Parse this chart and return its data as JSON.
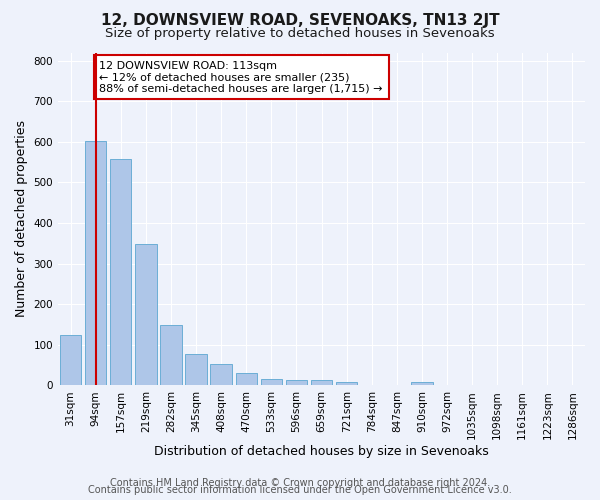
{
  "title": "12, DOWNSVIEW ROAD, SEVENOAKS, TN13 2JT",
  "subtitle": "Size of property relative to detached houses in Sevenoaks",
  "xlabel": "Distribution of detached houses by size in Sevenoaks",
  "ylabel": "Number of detached properties",
  "categories": [
    "31sqm",
    "94sqm",
    "157sqm",
    "219sqm",
    "282sqm",
    "345sqm",
    "408sqm",
    "470sqm",
    "533sqm",
    "596sqm",
    "659sqm",
    "721sqm",
    "784sqm",
    "847sqm",
    "910sqm",
    "972sqm",
    "1035sqm",
    "1098sqm",
    "1161sqm",
    "1223sqm",
    "1286sqm"
  ],
  "values": [
    125,
    603,
    558,
    347,
    148,
    76,
    52,
    30,
    15,
    13,
    13,
    7,
    0,
    0,
    8,
    0,
    0,
    0,
    0,
    0,
    0
  ],
  "bar_color": "#aec6e8",
  "bar_edge_color": "#6baed6",
  "vline_x": 1.0,
  "vline_color": "#cc0000",
  "annotation_text": "12 DOWNSVIEW ROAD: 113sqm\n← 12% of detached houses are smaller (235)\n88% of semi-detached houses are larger (1,715) →",
  "annotation_box_color": "#ffffff",
  "annotation_box_edge_color": "#cc0000",
  "ylim": [
    0,
    820
  ],
  "yticks": [
    0,
    100,
    200,
    300,
    400,
    500,
    600,
    700,
    800
  ],
  "footer1": "Contains HM Land Registry data © Crown copyright and database right 2024.",
  "footer2": "Contains public sector information licensed under the Open Government Licence v3.0.",
  "background_color": "#eef2fb",
  "title_fontsize": 11,
  "subtitle_fontsize": 9.5,
  "axis_label_fontsize": 9,
  "tick_fontsize": 7.5,
  "footer_fontsize": 7,
  "annotation_fontsize": 8
}
